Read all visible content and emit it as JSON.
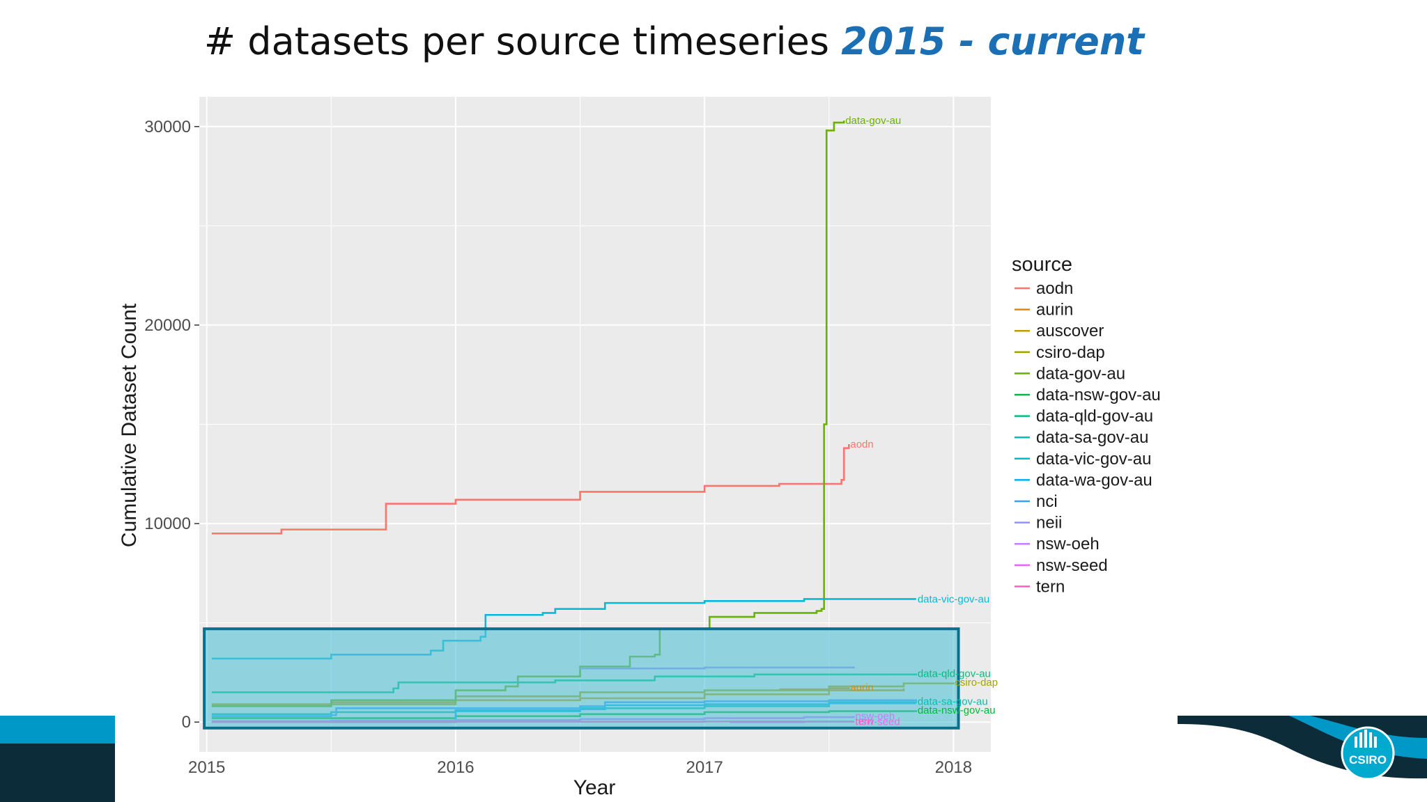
{
  "slide": {
    "title_main": "# datasets per source timeseries ",
    "title_highlight": "2015 - current",
    "logo_text": "CSIRO"
  },
  "colors": {
    "panel_bg": "#ebebeb",
    "grid": "#ffffff",
    "highlight_fill": "#5bc3d9",
    "highlight_border": "#0a6f8a",
    "title_highlight": "#1a6fb5",
    "footer_teal": "#0099c7",
    "footer_dark": "#0d2c3a"
  },
  "chart_data": {
    "type": "line",
    "xlabel": "Year",
    "ylabel": "Cumulative Dataset Count",
    "x_ticks": [
      2015,
      2016,
      2017,
      2018
    ],
    "y_ticks": [
      0,
      10000,
      20000,
      30000
    ],
    "xlim": [
      2014.97,
      2018.15
    ],
    "ylim": [
      -1500,
      31500
    ],
    "grid": true,
    "legend": {
      "title": "source",
      "position": "right"
    },
    "series": [
      {
        "name": "aodn",
        "color": "#f8766d",
        "end_label": "aodn",
        "points": [
          [
            2015.02,
            9500
          ],
          [
            2015.3,
            9700
          ],
          [
            2015.72,
            9900
          ],
          [
            2015.72,
            11000
          ],
          [
            2016.0,
            11200
          ],
          [
            2016.5,
            11600
          ],
          [
            2017.0,
            11900
          ],
          [
            2017.3,
            12000
          ],
          [
            2017.55,
            12200
          ],
          [
            2017.56,
            13800
          ],
          [
            2017.58,
            14000
          ]
        ]
      },
      {
        "name": "aurin",
        "color": "#e58700",
        "end_label": "aurin",
        "points": [
          [
            2017.3,
            1650
          ],
          [
            2017.5,
            1700
          ],
          [
            2017.58,
            1750
          ]
        ]
      },
      {
        "name": "auscover",
        "color": "#c99800",
        "end_label": "",
        "points": [
          [
            2015.02,
            900
          ],
          [
            2015.5,
            1000
          ],
          [
            2016.0,
            1100
          ],
          [
            2016.5,
            1200
          ],
          [
            2017.0,
            1400
          ],
          [
            2017.5,
            1600
          ],
          [
            2017.8,
            1700
          ]
        ]
      },
      {
        "name": "csiro-dap",
        "color": "#a3a500",
        "end_label": "csiro-dap",
        "points": [
          [
            2015.02,
            850
          ],
          [
            2015.5,
            900
          ],
          [
            2016.0,
            1300
          ],
          [
            2016.5,
            1500
          ],
          [
            2017.0,
            1600
          ],
          [
            2017.5,
            1800
          ],
          [
            2017.8,
            1950
          ],
          [
            2018.0,
            2000
          ]
        ]
      },
      {
        "name": "data-gov-au",
        "color": "#6bb100",
        "end_label": "data-gov-au",
        "points": [
          [
            2015.02,
            800
          ],
          [
            2015.5,
            1100
          ],
          [
            2016.0,
            1600
          ],
          [
            2016.2,
            1800
          ],
          [
            2016.25,
            2300
          ],
          [
            2016.5,
            2800
          ],
          [
            2016.7,
            3300
          ],
          [
            2016.8,
            3400
          ],
          [
            2016.82,
            4700
          ],
          [
            2017.01,
            4700
          ],
          [
            2017.02,
            5300
          ],
          [
            2017.2,
            5500
          ],
          [
            2017.45,
            5600
          ],
          [
            2017.47,
            5700
          ],
          [
            2017.48,
            15000
          ],
          [
            2017.49,
            29800
          ],
          [
            2017.52,
            30200
          ],
          [
            2017.56,
            30300
          ]
        ]
      },
      {
        "name": "data-nsw-gov-au",
        "color": "#00ba38",
        "end_label": "data-nsw-gov-au",
        "points": [
          [
            2015.02,
            200
          ],
          [
            2016.0,
            300
          ],
          [
            2016.5,
            400
          ],
          [
            2017.0,
            500
          ],
          [
            2017.5,
            550
          ],
          [
            2017.85,
            600
          ]
        ]
      },
      {
        "name": "data-qld-gov-au",
        "color": "#00bf7d",
        "end_label": "data-qld-gov-au",
        "points": [
          [
            2015.02,
            1500
          ],
          [
            2015.75,
            1700
          ],
          [
            2015.77,
            2000
          ],
          [
            2016.4,
            2100
          ],
          [
            2016.8,
            2300
          ],
          [
            2017.2,
            2400
          ],
          [
            2017.6,
            2400
          ],
          [
            2017.85,
            2450
          ]
        ]
      },
      {
        "name": "data-sa-gov-au",
        "color": "#00c0af",
        "end_label": "data-sa-gov-au",
        "points": [
          [
            2015.02,
            400
          ],
          [
            2015.5,
            500
          ],
          [
            2016.0,
            600
          ],
          [
            2016.5,
            700
          ],
          [
            2017.0,
            800
          ],
          [
            2017.5,
            1000
          ],
          [
            2017.85,
            1050
          ]
        ]
      },
      {
        "name": "data-vic-gov-au",
        "color": "#00bcd8",
        "end_label": "data-vic-gov-au",
        "points": [
          [
            2015.02,
            3200
          ],
          [
            2015.5,
            3400
          ],
          [
            2015.9,
            3600
          ],
          [
            2015.95,
            4100
          ],
          [
            2016.1,
            4300
          ],
          [
            2016.12,
            5400
          ],
          [
            2016.35,
            5500
          ],
          [
            2016.4,
            5700
          ],
          [
            2016.6,
            6000
          ],
          [
            2017.0,
            6100
          ],
          [
            2017.4,
            6200
          ],
          [
            2017.85,
            6200
          ]
        ]
      },
      {
        "name": "data-wa-gov-au",
        "color": "#00b0f6",
        "end_label": "",
        "points": [
          [
            2015.02,
            0
          ],
          [
            2015.8,
            50
          ],
          [
            2016.0,
            550
          ],
          [
            2016.5,
            650
          ],
          [
            2016.6,
            850
          ],
          [
            2017.0,
            900
          ],
          [
            2017.5,
            950
          ],
          [
            2017.85,
            950
          ]
        ]
      },
      {
        "name": "nci",
        "color": "#35a2ff",
        "end_label": "",
        "points": [
          [
            2015.02,
            300
          ],
          [
            2015.5,
            350
          ],
          [
            2015.52,
            700
          ],
          [
            2016.0,
            700
          ],
          [
            2016.5,
            800
          ],
          [
            2016.6,
            1000
          ],
          [
            2017.0,
            1050
          ],
          [
            2017.5,
            1100
          ],
          [
            2017.85,
            1150
          ]
        ]
      },
      {
        "name": "neii",
        "color": "#9590ff",
        "end_label": "",
        "points": [
          [
            2016.5,
            2700
          ],
          [
            2017.0,
            2750
          ],
          [
            2017.5,
            2750
          ],
          [
            2017.6,
            2800
          ]
        ]
      },
      {
        "name": "nsw-oeh",
        "color": "#c77cff",
        "end_label": "nsw-oeh",
        "points": [
          [
            2015.02,
            50
          ],
          [
            2015.5,
            80
          ],
          [
            2016.0,
            100
          ],
          [
            2016.5,
            150
          ],
          [
            2017.0,
            200
          ],
          [
            2017.4,
            250
          ],
          [
            2017.6,
            300
          ]
        ]
      },
      {
        "name": "nsw-seed",
        "color": "#e76bf3",
        "end_label": "nsw-seed",
        "points": [
          [
            2017.1,
            0
          ],
          [
            2017.4,
            20
          ],
          [
            2017.6,
            20
          ]
        ]
      },
      {
        "name": "tern",
        "color": "#ff62bc",
        "end_label": "tern",
        "points": [
          [
            2015.02,
            0
          ],
          [
            2015.5,
            0
          ],
          [
            2016.0,
            20
          ],
          [
            2017.0,
            30
          ],
          [
            2017.6,
            40
          ]
        ]
      }
    ],
    "highlight_box": {
      "x": [
        2014.99,
        2018.02
      ],
      "y": [
        -300,
        4700
      ]
    }
  }
}
